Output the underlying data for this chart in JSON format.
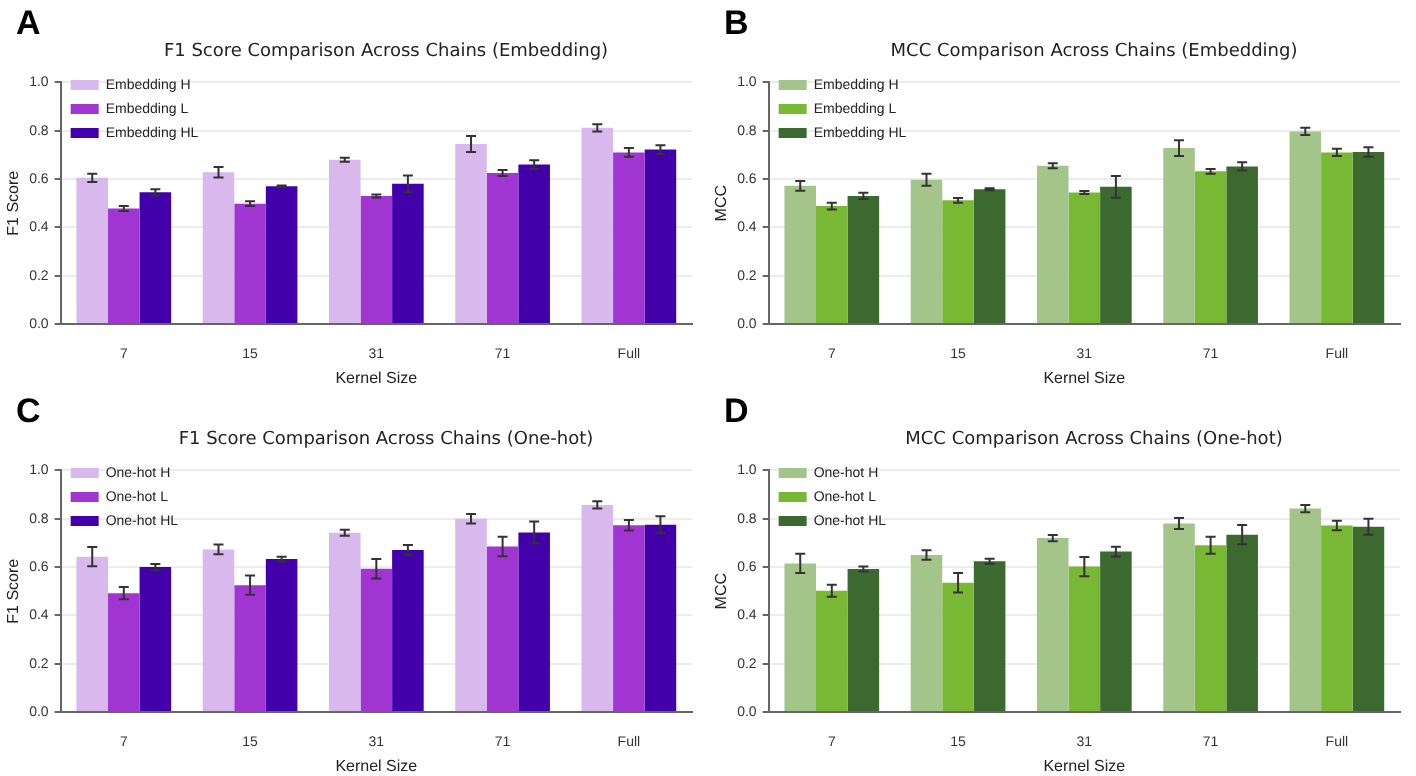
{
  "chart_data": [
    {
      "type": "bar",
      "annotations": [
        "A"
      ],
      "title": "F1 Score Comparison Across Chains (Embedding)",
      "xlabel": "Kernel Size",
      "ylabel": "F1 Score",
      "categories": [
        "7",
        "15",
        "31",
        "71",
        "Full"
      ],
      "ylim": [
        0,
        1
      ],
      "yticks": [
        {
          "value": 0,
          "label": "0.0"
        },
        {
          "value": 0.2,
          "label": "0.2"
        },
        {
          "value": 0.4,
          "label": "0.4"
        },
        {
          "value": 0.6,
          "label": "0.6"
        },
        {
          "value": 0.8,
          "label": "0.8"
        },
        {
          "value": 1,
          "label": "1.0"
        }
      ],
      "grid": "y",
      "legend": "top left",
      "series": [
        {
          "name": "Embedding H",
          "color": "#d9b8ee",
          "values": [
            0.605,
            0.628,
            0.68,
            0.745,
            0.812
          ],
          "errors": [
            0.017,
            0.022,
            0.008,
            0.033,
            0.015
          ]
        },
        {
          "name": "Embedding L",
          "color": "#a035d2",
          "values": [
            0.478,
            0.498,
            0.53,
            0.625,
            0.71
          ],
          "errors": [
            0.01,
            0.01,
            0.006,
            0.012,
            0.018
          ]
        },
        {
          "name": "Embedding HL",
          "color": "#4200aa",
          "values": [
            0.545,
            0.57,
            0.58,
            0.66,
            0.722
          ],
          "errors": [
            0.013,
            0.003,
            0.035,
            0.018,
            0.018
          ]
        }
      ]
    },
    {
      "type": "bar",
      "annotations": [
        "B"
      ],
      "title": "MCC Comparison Across Chains (Embedding)",
      "xlabel": "Kernel Size",
      "ylabel": "MCC",
      "categories": [
        "7",
        "15",
        "31",
        "71",
        "Full"
      ],
      "ylim": [
        0,
        1
      ],
      "yticks": [
        {
          "value": 0,
          "label": "0.0"
        },
        {
          "value": 0.2,
          "label": "0.2"
        },
        {
          "value": 0.4,
          "label": "0.4"
        },
        {
          "value": 0.6,
          "label": "0.6"
        },
        {
          "value": 0.8,
          "label": "0.8"
        },
        {
          "value": 1,
          "label": "1.0"
        }
      ],
      "grid": "y",
      "legend": "top left",
      "series": [
        {
          "name": "Embedding H",
          "color": "#a4c58a",
          "values": [
            0.572,
            0.597,
            0.655,
            0.728,
            0.797
          ],
          "errors": [
            0.02,
            0.025,
            0.01,
            0.033,
            0.015
          ]
        },
        {
          "name": "Embedding L",
          "color": "#78b834",
          "values": [
            0.488,
            0.512,
            0.544,
            0.632,
            0.71
          ],
          "errors": [
            0.014,
            0.01,
            0.006,
            0.01,
            0.015
          ]
        },
        {
          "name": "Embedding HL",
          "color": "#3b692f",
          "values": [
            0.53,
            0.558,
            0.568,
            0.652,
            0.712
          ],
          "errors": [
            0.013,
            0.004,
            0.045,
            0.017,
            0.02
          ]
        }
      ]
    },
    {
      "type": "bar",
      "annotations": [
        "C"
      ],
      "title": "F1 Score Comparison Across Chains (One-hot)",
      "xlabel": "Kernel Size",
      "ylabel": "F1 Score",
      "categories": [
        "7",
        "15",
        "31",
        "71",
        "Full"
      ],
      "ylim": [
        0,
        1
      ],
      "yticks": [
        {
          "value": 0,
          "label": "0.0"
        },
        {
          "value": 0.2,
          "label": "0.2"
        },
        {
          "value": 0.4,
          "label": "0.4"
        },
        {
          "value": 0.6,
          "label": "0.6"
        },
        {
          "value": 0.8,
          "label": "0.8"
        },
        {
          "value": 1,
          "label": "1.0"
        }
      ],
      "grid": "y",
      "legend": "top left",
      "series": [
        {
          "name": "One-hot H",
          "color": "#d9b8ee",
          "values": [
            0.643,
            0.673,
            0.742,
            0.8,
            0.857
          ],
          "errors": [
            0.04,
            0.02,
            0.012,
            0.02,
            0.015
          ]
        },
        {
          "name": "One-hot L",
          "color": "#a035d2",
          "values": [
            0.492,
            0.525,
            0.593,
            0.685,
            0.773
          ],
          "errors": [
            0.025,
            0.04,
            0.04,
            0.04,
            0.022
          ]
        },
        {
          "name": "One-hot HL",
          "color": "#4200aa",
          "values": [
            0.6,
            0.633,
            0.671,
            0.743,
            0.775
          ],
          "errors": [
            0.013,
            0.01,
            0.02,
            0.045,
            0.035
          ]
        }
      ]
    },
    {
      "type": "bar",
      "annotations": [
        "D"
      ],
      "title": "MCC Comparison Across Chains (One-hot)",
      "xlabel": "Kernel Size",
      "ylabel": "MCC",
      "categories": [
        "7",
        "15",
        "31",
        "71",
        "Full"
      ],
      "ylim": [
        0,
        1
      ],
      "yticks": [
        {
          "value": 0,
          "label": "0.0"
        },
        {
          "value": 0.2,
          "label": "0.2"
        },
        {
          "value": 0.4,
          "label": "0.4"
        },
        {
          "value": 0.6,
          "label": "0.6"
        },
        {
          "value": 0.8,
          "label": "0.8"
        },
        {
          "value": 1,
          "label": "1.0"
        }
      ],
      "grid": "y",
      "legend": "top left",
      "series": [
        {
          "name": "One-hot H",
          "color": "#a4c58a",
          "values": [
            0.615,
            0.65,
            0.72,
            0.78,
            0.842
          ],
          "errors": [
            0.04,
            0.02,
            0.013,
            0.023,
            0.015
          ]
        },
        {
          "name": "One-hot L",
          "color": "#78b834",
          "values": [
            0.502,
            0.535,
            0.602,
            0.69,
            0.772
          ],
          "errors": [
            0.025,
            0.04,
            0.04,
            0.035,
            0.02
          ]
        },
        {
          "name": "One-hot HL",
          "color": "#3b692f",
          "values": [
            0.592,
            0.624,
            0.664,
            0.734,
            0.767
          ],
          "errors": [
            0.01,
            0.01,
            0.02,
            0.04,
            0.033
          ]
        }
      ]
    }
  ]
}
